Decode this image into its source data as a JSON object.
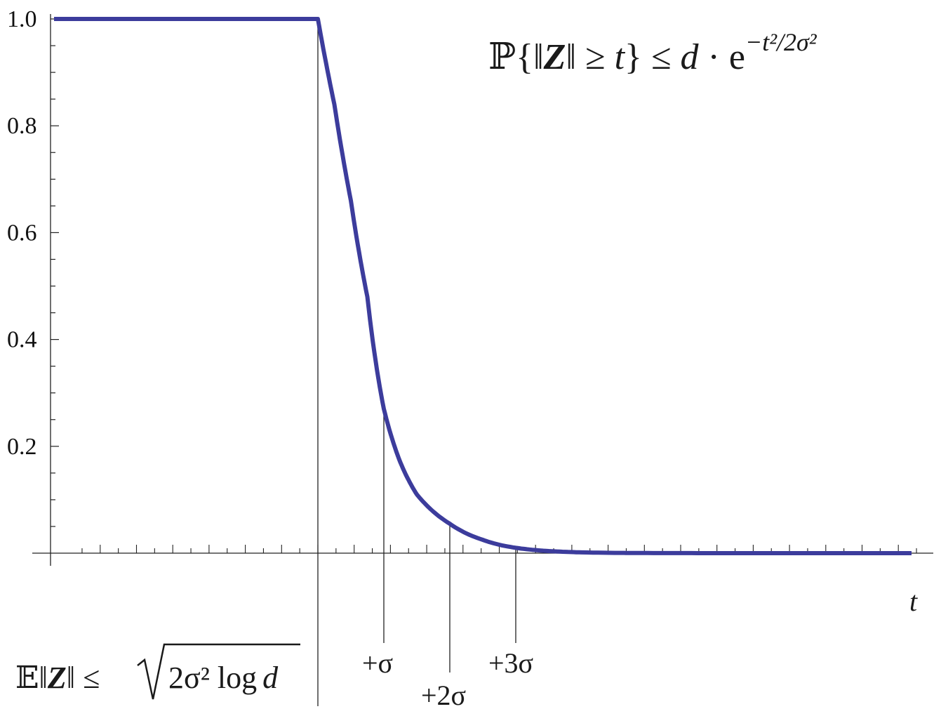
{
  "chart_data": {
    "type": "line",
    "title": "",
    "xlabel": "t",
    "ylabel": "",
    "ylim": [
      0,
      1
    ],
    "yticks": [
      {
        "value": 0.2,
        "label": "0.2"
      },
      {
        "value": 0.4,
        "label": "0.4"
      },
      {
        "value": 0.6,
        "label": "0.6"
      },
      {
        "value": 0.8,
        "label": "0.8"
      },
      {
        "value": 1.0,
        "label": "1.0"
      }
    ],
    "xlim": [
      -4,
      9
    ],
    "curve": {
      "description": "min(1, exp(-((t-t0)^2)/2 + 0.5*t0^2)) style tail bound",
      "flat_until": 0,
      "sigma": 1,
      "points": [
        {
          "t": -4,
          "p": 1.0
        },
        {
          "t": 0,
          "p": 1.0
        },
        {
          "t": 0.25,
          "p": 0.84
        },
        {
          "t": 0.5,
          "p": 0.66
        },
        {
          "t": 0.75,
          "p": 0.48
        },
        {
          "t": 1.0,
          "p": 0.27
        },
        {
          "t": 1.25,
          "p": 0.17
        },
        {
          "t": 1.5,
          "p": 0.11
        },
        {
          "t": 2.0,
          "p": 0.055
        },
        {
          "t": 2.5,
          "p": 0.025
        },
        {
          "t": 3.0,
          "p": 0.01
        },
        {
          "t": 3.5,
          "p": 0.004
        },
        {
          "t": 4.0,
          "p": 0.0015
        },
        {
          "t": 5.0,
          "p": 0.0002
        },
        {
          "t": 6.0,
          "p": 0.0
        },
        {
          "t": 9.0,
          "p": 0.0
        }
      ]
    },
    "markers": [
      {
        "t": 0,
        "label": "𝔼‖Z‖ ≤ √(2σ² log d)"
      },
      {
        "t": 1,
        "label": "+σ"
      },
      {
        "t": 2,
        "label": "+2σ"
      },
      {
        "t": 3,
        "label": "+3σ"
      }
    ],
    "annotation": "ℙ{‖Z‖ ≥ t} ≤ d·e^(−t²/2σ²)",
    "colors": {
      "curve": "#3c3c9c",
      "axis": "#222222"
    }
  },
  "labels": {
    "x_axis": "t",
    "marker_1": "+σ",
    "marker_2": "+2σ",
    "marker_3": "+3σ",
    "formula_prob": "ℙ",
    "formula_open": "{‖",
    "formula_Z": "Z",
    "formula_mid": "‖ ≥ ",
    "formula_t": "t",
    "formula_close": "} ≤ ",
    "formula_d": "d",
    "formula_dot": " · e",
    "formula_exp": "−t²/2σ²",
    "expect_E": "𝔼",
    "expect_norm_open": "‖",
    "expect_Z": "Z",
    "expect_norm_close": "‖ ≤ ",
    "expect_root": "2σ² log",
    "expect_d": "d"
  }
}
